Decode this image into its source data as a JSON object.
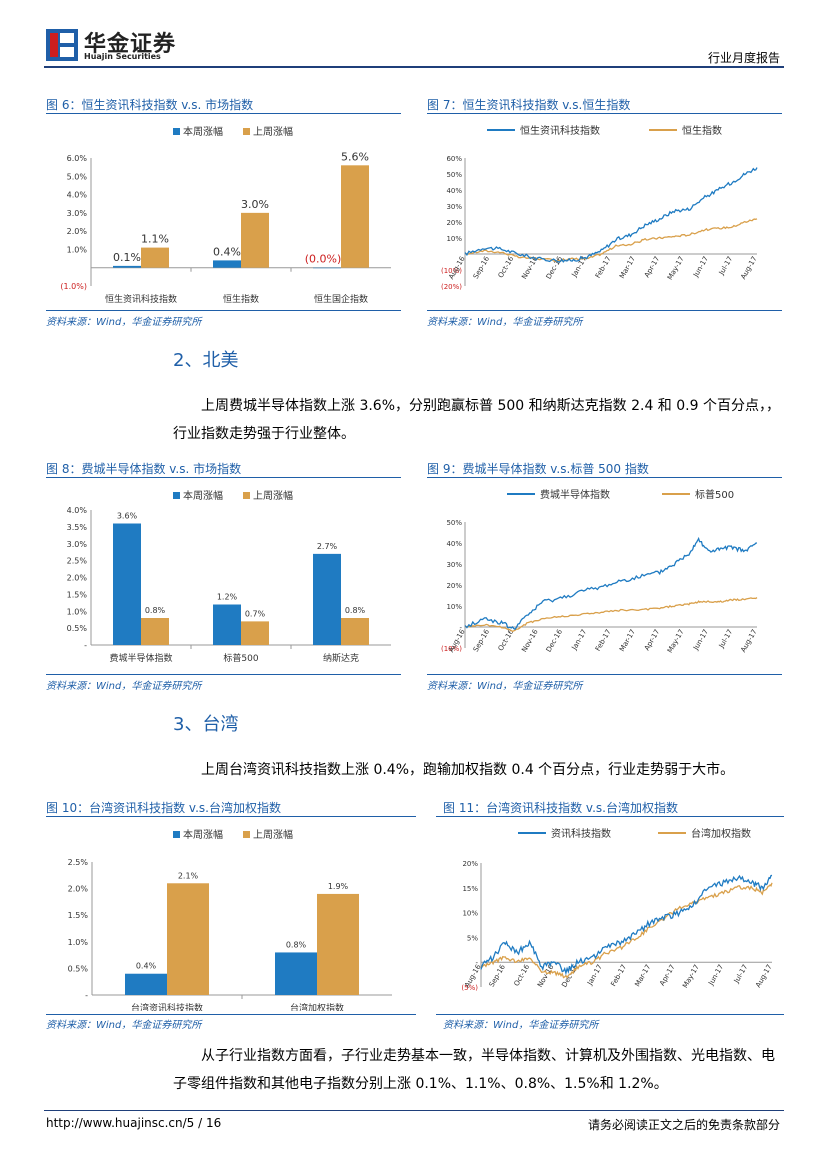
{
  "header": {
    "brand_cn": "华金证券",
    "brand_en": "Huajin Securities",
    "report_type": "行业月度报告"
  },
  "source_label": "资料来源：Wind，华金证券研究所",
  "sections": [
    {
      "title": "2、北美",
      "paragraph": "上周费城半导体指数上涨 3.6%，分别跑赢标普 500 和纳斯达克指数 2.4 和 0.9 个百分点，，行业指数走势强于行业整体。"
    },
    {
      "title": "3、台湾",
      "paragraph": "上周台湾资讯科技指数上涨 0.4%，跑输加权指数 0.4 个百分点，行业走势弱于大市。"
    }
  ],
  "closing_paragraph": "从子行业指数方面看，子行业走势基本一致，半导体指数、计算机及外围指数、光电指数、电子零组件指数和其他电子指数分别上涨 0.1%、1.1%、0.8%、1.5%和 1.2%。",
  "footer": {
    "url_page": "http://www.huajinsc.cn/5 / 16",
    "disclaimer": "请务必阅读正文之后的免责条款部分"
  },
  "colors": {
    "blue": "#1f7bc2",
    "orange": "#d9a04b",
    "accent": "#1f5fa8",
    "negative": "#cc1e1e"
  },
  "chart_data": [
    {
      "id": "fig6",
      "type": "bar",
      "title": "图 6：恒生资讯科技指数 v.s. 市场指数",
      "categories": [
        "恒生资讯科技指数",
        "恒生指数",
        "恒生国企指数"
      ],
      "series": [
        {
          "name": "本周涨幅",
          "values": [
            0.1,
            0.4,
            0.0
          ]
        },
        {
          "name": "上周涨幅",
          "values": [
            1.1,
            3.0,
            5.6
          ]
        }
      ],
      "data_labels": [
        [
          "0.1%",
          "0.4%",
          "(0.0%)"
        ],
        [
          "1.1%",
          "3.0%",
          "5.6%"
        ]
      ],
      "yticks": [
        "(1.0%)",
        "1.0%",
        "2.0%",
        "3.0%",
        "4.0%",
        "5.0%",
        "6.0%"
      ],
      "ylim": [
        -1,
        6
      ]
    },
    {
      "id": "fig7",
      "type": "line",
      "title": "图 7：恒生资讯科技指数 v.s.恒生指数",
      "series_names": [
        "恒生资讯科技指数",
        "恒生指数"
      ],
      "xticks": [
        "Aug-16",
        "Sep-16",
        "Oct-16",
        "Nov-16",
        "Dec-16",
        "Jan-17",
        "Feb-17",
        "Mar-17",
        "Apr-17",
        "May-17",
        "Jun-17",
        "Jul-17",
        "Aug-17"
      ],
      "yticks": [
        "(20%)",
        "(10%)",
        "10%",
        "20%",
        "30%",
        "40%",
        "50%",
        "60%"
      ],
      "ylim": [
        -20,
        60
      ],
      "anchors": [
        [
          0,
          0,
          0
        ],
        [
          0.8,
          4,
          2
        ],
        [
          1.5,
          3,
          1
        ],
        [
          2.2,
          0,
          -2
        ],
        [
          3.0,
          -3,
          -3
        ],
        [
          3.8,
          -4,
          -4
        ],
        [
          4.4,
          -4,
          -3
        ],
        [
          5.0,
          -2,
          -3
        ],
        [
          5.6,
          2,
          0
        ],
        [
          6.2,
          9,
          5
        ],
        [
          6.8,
          12,
          6
        ],
        [
          7.4,
          18,
          9
        ],
        [
          8.0,
          22,
          10
        ],
        [
          8.6,
          27,
          11
        ],
        [
          9.2,
          28,
          12
        ],
        [
          9.8,
          35,
          15
        ],
        [
          10.4,
          40,
          16
        ],
        [
          11.0,
          45,
          17
        ],
        [
          11.5,
          50,
          20
        ],
        [
          12.0,
          54,
          22
        ]
      ]
    },
    {
      "id": "fig8",
      "type": "bar",
      "title": "图 8：费城半导体指数 v.s. 市场指数",
      "categories": [
        "费城半导体指数",
        "标普500",
        "纳斯达克"
      ],
      "series": [
        {
          "name": "本周涨幅",
          "values": [
            3.6,
            1.2,
            2.7
          ]
        },
        {
          "name": "上周涨幅",
          "values": [
            0.8,
            0.7,
            0.8
          ]
        }
      ],
      "data_labels": [
        [
          "3.6%",
          "1.2%",
          "2.7%"
        ],
        [
          "0.8%",
          "0.7%",
          "0.8%"
        ]
      ],
      "yticks": [
        "-",
        "0.5%",
        "1.0%",
        "1.5%",
        "2.0%",
        "2.5%",
        "3.0%",
        "3.5%",
        "4.0%"
      ],
      "ylim": [
        0,
        4
      ]
    },
    {
      "id": "fig9",
      "type": "line",
      "title": "图 9：费城半导体指数 v.s.标普 500 指数",
      "series_names": [
        "费城半导体指数",
        "标普500"
      ],
      "xticks": [
        "Aug-16",
        "Sep-16",
        "Oct-16",
        "Nov-16",
        "Dec-16",
        "Jan-17",
        "Feb-17",
        "Mar-17",
        "Apr-17",
        "May-17",
        "Jun-17",
        "Jul-17",
        "Aug-17"
      ],
      "yticks": [
        "(10%)",
        "-",
        "10%",
        "20%",
        "30%",
        "40%",
        "50%"
      ],
      "ylim": [
        -10,
        50
      ],
      "anchors": [
        [
          0,
          0,
          0
        ],
        [
          0.8,
          4,
          1
        ],
        [
          1.5,
          2,
          0
        ],
        [
          2.0,
          -1,
          -2
        ],
        [
          2.6,
          6,
          2
        ],
        [
          3.2,
          12,
          4
        ],
        [
          4.0,
          14,
          5
        ],
        [
          4.8,
          17,
          6
        ],
        [
          5.6,
          19,
          7
        ],
        [
          6.4,
          22,
          8
        ],
        [
          7.2,
          24,
          8
        ],
        [
          8.0,
          26,
          9
        ],
        [
          8.6,
          30,
          10
        ],
        [
          9.2,
          35,
          11
        ],
        [
          9.6,
          42,
          12
        ],
        [
          10.0,
          36,
          12
        ],
        [
          10.5,
          37,
          12
        ],
        [
          11.0,
          38,
          13
        ],
        [
          11.5,
          36,
          13
        ],
        [
          12.0,
          40,
          14
        ]
      ]
    },
    {
      "id": "fig10",
      "type": "bar",
      "title": "图 10：台湾资讯科技指数 v.s.台湾加权指数",
      "categories": [
        "台湾资讯科技指数",
        "台湾加权指数"
      ],
      "series": [
        {
          "name": "本周涨幅",
          "values": [
            0.4,
            0.8
          ]
        },
        {
          "name": "上周涨幅",
          "values": [
            2.1,
            1.9
          ]
        }
      ],
      "data_labels": [
        [
          "0.4%",
          "0.8%"
        ],
        [
          "2.1%",
          "1.9%"
        ]
      ],
      "yticks": [
        "-",
        "0.5%",
        "1.0%",
        "1.5%",
        "2.0%",
        "2.5%"
      ],
      "ylim": [
        0,
        2.5
      ]
    },
    {
      "id": "fig11",
      "type": "line",
      "title": "图 11：台湾资讯科技指数 v.s.台湾加权指数",
      "series_names": [
        "资讯科技指数",
        "台湾加权指数"
      ],
      "xticks": [
        "Aug-16",
        "Sep-16",
        "Oct-16",
        "Nov-16",
        "Dec-16",
        "Jan-17",
        "Feb-17",
        "Mar-17",
        "Apr-17",
        "May-17",
        "Jun-17",
        "Jul-17",
        "Aug-17"
      ],
      "yticks": [
        "(5%)",
        "-",
        "5%",
        "10%",
        "15%",
        "20%"
      ],
      "ylim": [
        -5,
        20
      ],
      "anchors": [
        [
          0,
          -1,
          -1
        ],
        [
          0.5,
          1,
          0
        ],
        [
          1.0,
          4,
          1
        ],
        [
          1.5,
          2,
          0
        ],
        [
          2.0,
          4,
          1
        ],
        [
          2.5,
          -1,
          -2
        ],
        [
          3.0,
          0,
          -2
        ],
        [
          3.5,
          -2,
          -3
        ],
        [
          4.0,
          0,
          -1
        ],
        [
          4.6,
          1,
          0
        ],
        [
          5.2,
          3,
          2
        ],
        [
          5.8,
          4,
          3
        ],
        [
          6.4,
          6,
          5
        ],
        [
          7.0,
          8,
          7
        ],
        [
          7.6,
          9,
          9
        ],
        [
          8.2,
          10,
          11
        ],
        [
          8.8,
          12,
          12
        ],
        [
          9.4,
          15,
          13
        ],
        [
          10.0,
          16,
          14
        ],
        [
          10.6,
          17,
          15
        ],
        [
          11.2,
          16,
          15
        ],
        [
          11.6,
          15,
          14
        ],
        [
          12.0,
          17.5,
          16
        ]
      ]
    }
  ]
}
